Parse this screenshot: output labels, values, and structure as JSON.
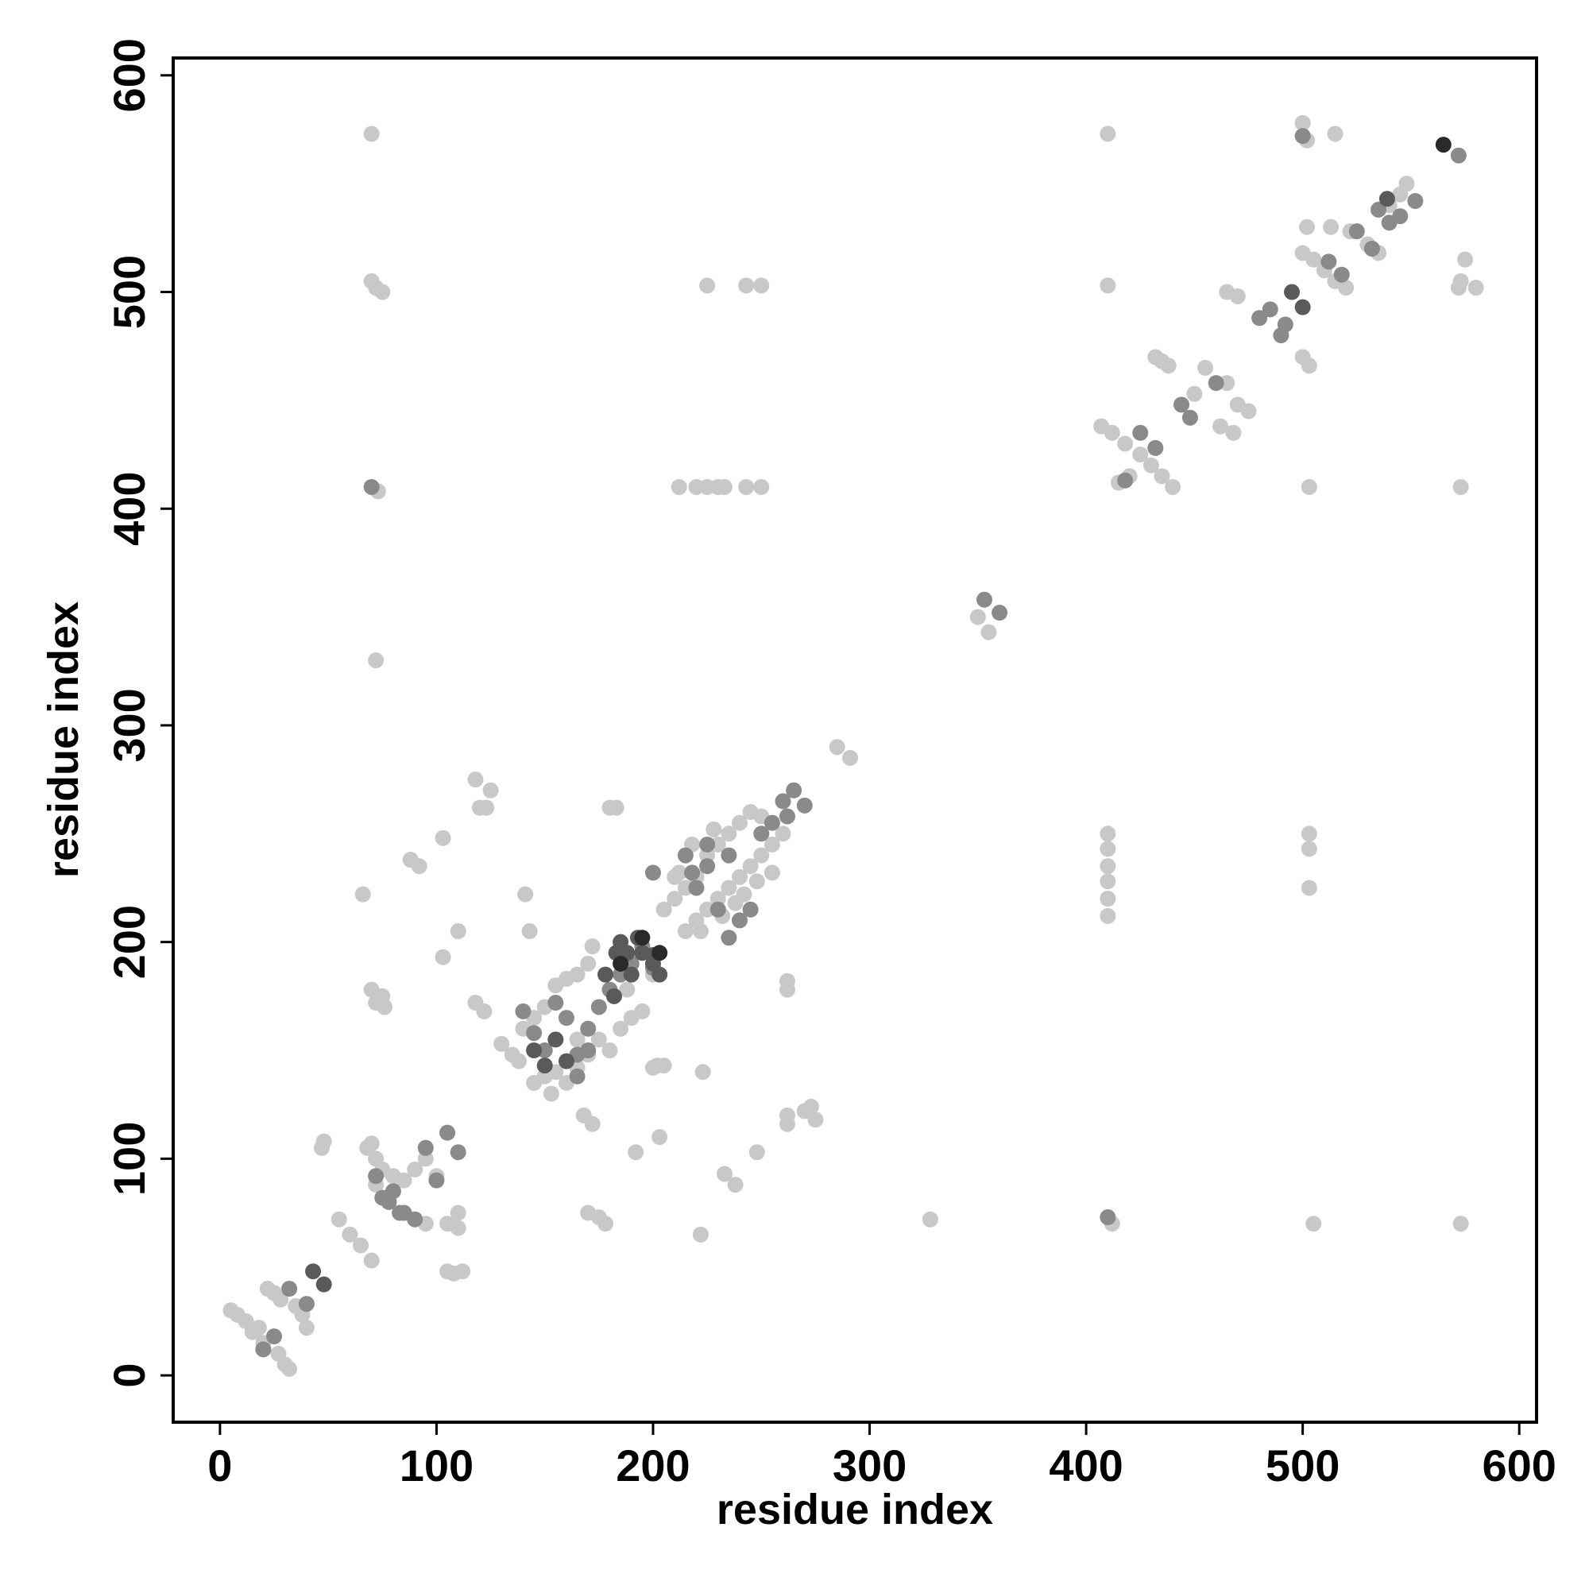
{
  "chart_data": {
    "type": "scatter",
    "xlabel": "residue index",
    "ylabel": "residue index",
    "xlim": [
      -21.6,
      608
    ],
    "ylim": [
      -21.6,
      608
    ],
    "xticks": [
      0,
      100,
      200,
      300,
      400,
      500,
      600
    ],
    "yticks": [
      0,
      100,
      200,
      300,
      400,
      500,
      600
    ],
    "series": [
      {
        "color": "#c8c8c8",
        "x": [
          5,
          8,
          12,
          15,
          18,
          22,
          25,
          28,
          30,
          32,
          27,
          35,
          38,
          40,
          20,
          70,
          68,
          72,
          75,
          80,
          85,
          90,
          95,
          100,
          105,
          110,
          95,
          85,
          72,
          110,
          55,
          60,
          65,
          70,
          48,
          47,
          105,
          108,
          112,
          70,
          70,
          72,
          75,
          73,
          72,
          225,
          243,
          250,
          212,
          220,
          225,
          230,
          233,
          243,
          250,
          410,
          410,
          412,
          505,
          573,
          410,
          410,
          410,
          410,
          410,
          410,
          503,
          503,
          503,
          503,
          573,
          328,
          350,
          355,
          285,
          291,
          66,
          70,
          75,
          72,
          76,
          88,
          92,
          103,
          103,
          110,
          120,
          123,
          118,
          125,
          118,
          122,
          141,
          143,
          180,
          183,
          168,
          172,
          170,
          175,
          178,
          192,
          203,
          202,
          205,
          222,
          223,
          233,
          238,
          248,
          262,
          262,
          262,
          262,
          270,
          275,
          273,
          407,
          412,
          418,
          425,
          430,
          435,
          440,
          415,
          420,
          432,
          435,
          438,
          455,
          465,
          462,
          468,
          465,
          470,
          500,
          503,
          500,
          505,
          510,
          515,
          520,
          513,
          522,
          530,
          535,
          540,
          545,
          548,
          502,
          500,
          502,
          515,
          575,
          573,
          572,
          580,
          470,
          450,
          475,
          130,
          135,
          138,
          140,
          145,
          150,
          155,
          160,
          165,
          170,
          172,
          145,
          150,
          155,
          160,
          165,
          153,
          165,
          170,
          180,
          185,
          190,
          195,
          188,
          200,
          205,
          210,
          215,
          220,
          225,
          230,
          235,
          240,
          245,
          250,
          215,
          220,
          225,
          230,
          235,
          240,
          245,
          250,
          255,
          260,
          218,
          212,
          228,
          238,
          248,
          255,
          222,
          232,
          242,
          210,
          200,
          175
        ],
        "y": [
          30,
          28,
          25,
          20,
          22,
          40,
          38,
          35,
          5,
          3,
          10,
          32,
          28,
          22,
          15,
          107,
          105,
          100,
          95,
          92,
          90,
          95,
          100,
          92,
          70,
          68,
          70,
          75,
          88,
          75,
          72,
          65,
          60,
          53,
          108,
          105,
          48,
          47,
          48,
          573,
          505,
          502,
          500,
          408,
          330,
          503,
          503,
          503,
          410,
          410,
          410,
          410,
          410,
          410,
          410,
          573,
          503,
          70,
          70,
          70,
          250,
          243,
          235,
          228,
          220,
          212,
          250,
          243,
          225,
          410,
          410,
          72,
          350,
          343,
          290,
          285,
          222,
          178,
          175,
          172,
          170,
          238,
          235,
          248,
          193,
          205,
          262,
          262,
          275,
          270,
          172,
          168,
          222,
          205,
          262,
          262,
          120,
          116,
          75,
          73,
          70,
          103,
          110,
          143,
          143,
          65,
          140,
          93,
          88,
          103,
          182,
          178,
          120,
          116,
          122,
          118,
          124,
          438,
          435,
          430,
          425,
          420,
          415,
          410,
          412,
          415,
          470,
          468,
          466,
          465,
          458,
          438,
          435,
          500,
          498,
          470,
          466,
          518,
          515,
          510,
          505,
          502,
          530,
          528,
          522,
          518,
          540,
          545,
          550,
          530,
          578,
          570,
          573,
          515,
          505,
          502,
          502,
          448,
          453,
          445,
          153,
          148,
          145,
          160,
          165,
          170,
          180,
          183,
          185,
          190,
          198,
          135,
          138,
          140,
          135,
          142,
          130,
          155,
          148,
          150,
          160,
          165,
          168,
          178,
          185,
          215,
          220,
          225,
          230,
          240,
          245,
          250,
          255,
          260,
          258,
          205,
          210,
          215,
          220,
          225,
          230,
          235,
          240,
          245,
          250,
          245,
          232,
          252,
          218,
          228,
          232,
          205,
          212,
          222,
          230,
          142,
          155
        ]
      },
      {
        "color": "#8a8a8a",
        "x": [
          20,
          25,
          32,
          40,
          72,
          75,
          80,
          85,
          90,
          95,
          100,
          105,
          110,
          83,
          78,
          70,
          410,
          353,
          360,
          140,
          145,
          150,
          155,
          160,
          165,
          170,
          175,
          180,
          185,
          190,
          195,
          200,
          165,
          170,
          200,
          215,
          220,
          225,
          230,
          235,
          240,
          245,
          250,
          255,
          260,
          265,
          270,
          262,
          225,
          235,
          218,
          418,
          425,
          432,
          444,
          448,
          460,
          480,
          485,
          490,
          492,
          512,
          518,
          525,
          532,
          535,
          540,
          545,
          552,
          572,
          500
        ],
        "y": [
          12,
          18,
          40,
          33,
          92,
          82,
          85,
          75,
          72,
          105,
          90,
          112,
          103,
          75,
          80,
          410,
          73,
          358,
          352,
          168,
          158,
          150,
          172,
          165,
          148,
          160,
          170,
          178,
          185,
          190,
          198,
          188,
          138,
          150,
          232,
          240,
          225,
          235,
          215,
          240,
          210,
          215,
          250,
          255,
          265,
          270,
          263,
          258,
          245,
          202,
          232,
          413,
          435,
          428,
          448,
          442,
          458,
          488,
          492,
          480,
          485,
          514,
          508,
          528,
          520,
          538,
          532,
          535,
          542,
          563,
          572
        ]
      },
      {
        "color": "#5a5a5a",
        "x": [
          43,
          48,
          145,
          150,
          155,
          160,
          178,
          182,
          185,
          188,
          190,
          195,
          200,
          203,
          200,
          193,
          183,
          495,
          500,
          539
        ],
        "y": [
          48,
          42,
          150,
          143,
          155,
          145,
          185,
          175,
          200,
          195,
          185,
          195,
          190,
          185,
          194,
          202,
          195,
          500,
          493,
          543
        ]
      },
      {
        "color": "#2a2a2a",
        "x": [
          195,
          203,
          185,
          565
        ],
        "y": [
          202,
          195,
          190,
          568
        ]
      }
    ]
  }
}
